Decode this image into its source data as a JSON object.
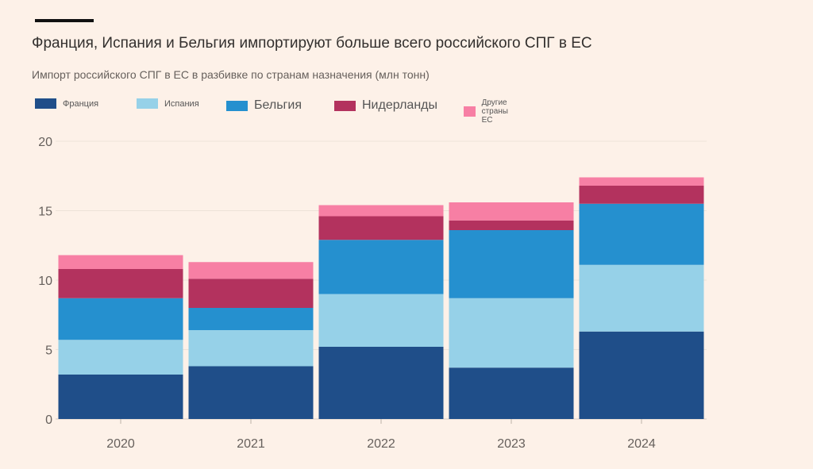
{
  "chart_data": {
    "type": "bar",
    "stacked": true,
    "title": "Франция, Испания и Бельгия импортируют больше всего российского СПГ в ЕС",
    "subtitle": "Импорт российского СПГ в ЕС в разбивке по странам назначения (млн тонн)",
    "categories": [
      "2020",
      "2021",
      "2022",
      "2023",
      "2024"
    ],
    "ylim": [
      0,
      20
    ],
    "yticks": [
      0,
      5,
      10,
      15,
      20
    ],
    "grid": true,
    "legend_position": "top-left",
    "series": [
      {
        "name": "Франция",
        "color": "#1f4e89",
        "values": [
          3.2,
          3.8,
          5.2,
          3.7,
          6.3
        ]
      },
      {
        "name": "Испания",
        "color": "#96d1e8",
        "values": [
          2.5,
          2.6,
          3.8,
          5.0,
          4.8
        ]
      },
      {
        "name": "Бельгия",
        "color": "#2590cf",
        "values": [
          3.0,
          1.6,
          3.9,
          4.9,
          4.4
        ]
      },
      {
        "name": "Нидерланды",
        "color": "#b3325e",
        "values": [
          2.1,
          2.1,
          1.7,
          0.7,
          1.3
        ]
      },
      {
        "name": "Другие страны ЕС",
        "color": "#f77fa4",
        "values": [
          1.0,
          1.2,
          0.8,
          1.3,
          0.6
        ]
      }
    ]
  }
}
